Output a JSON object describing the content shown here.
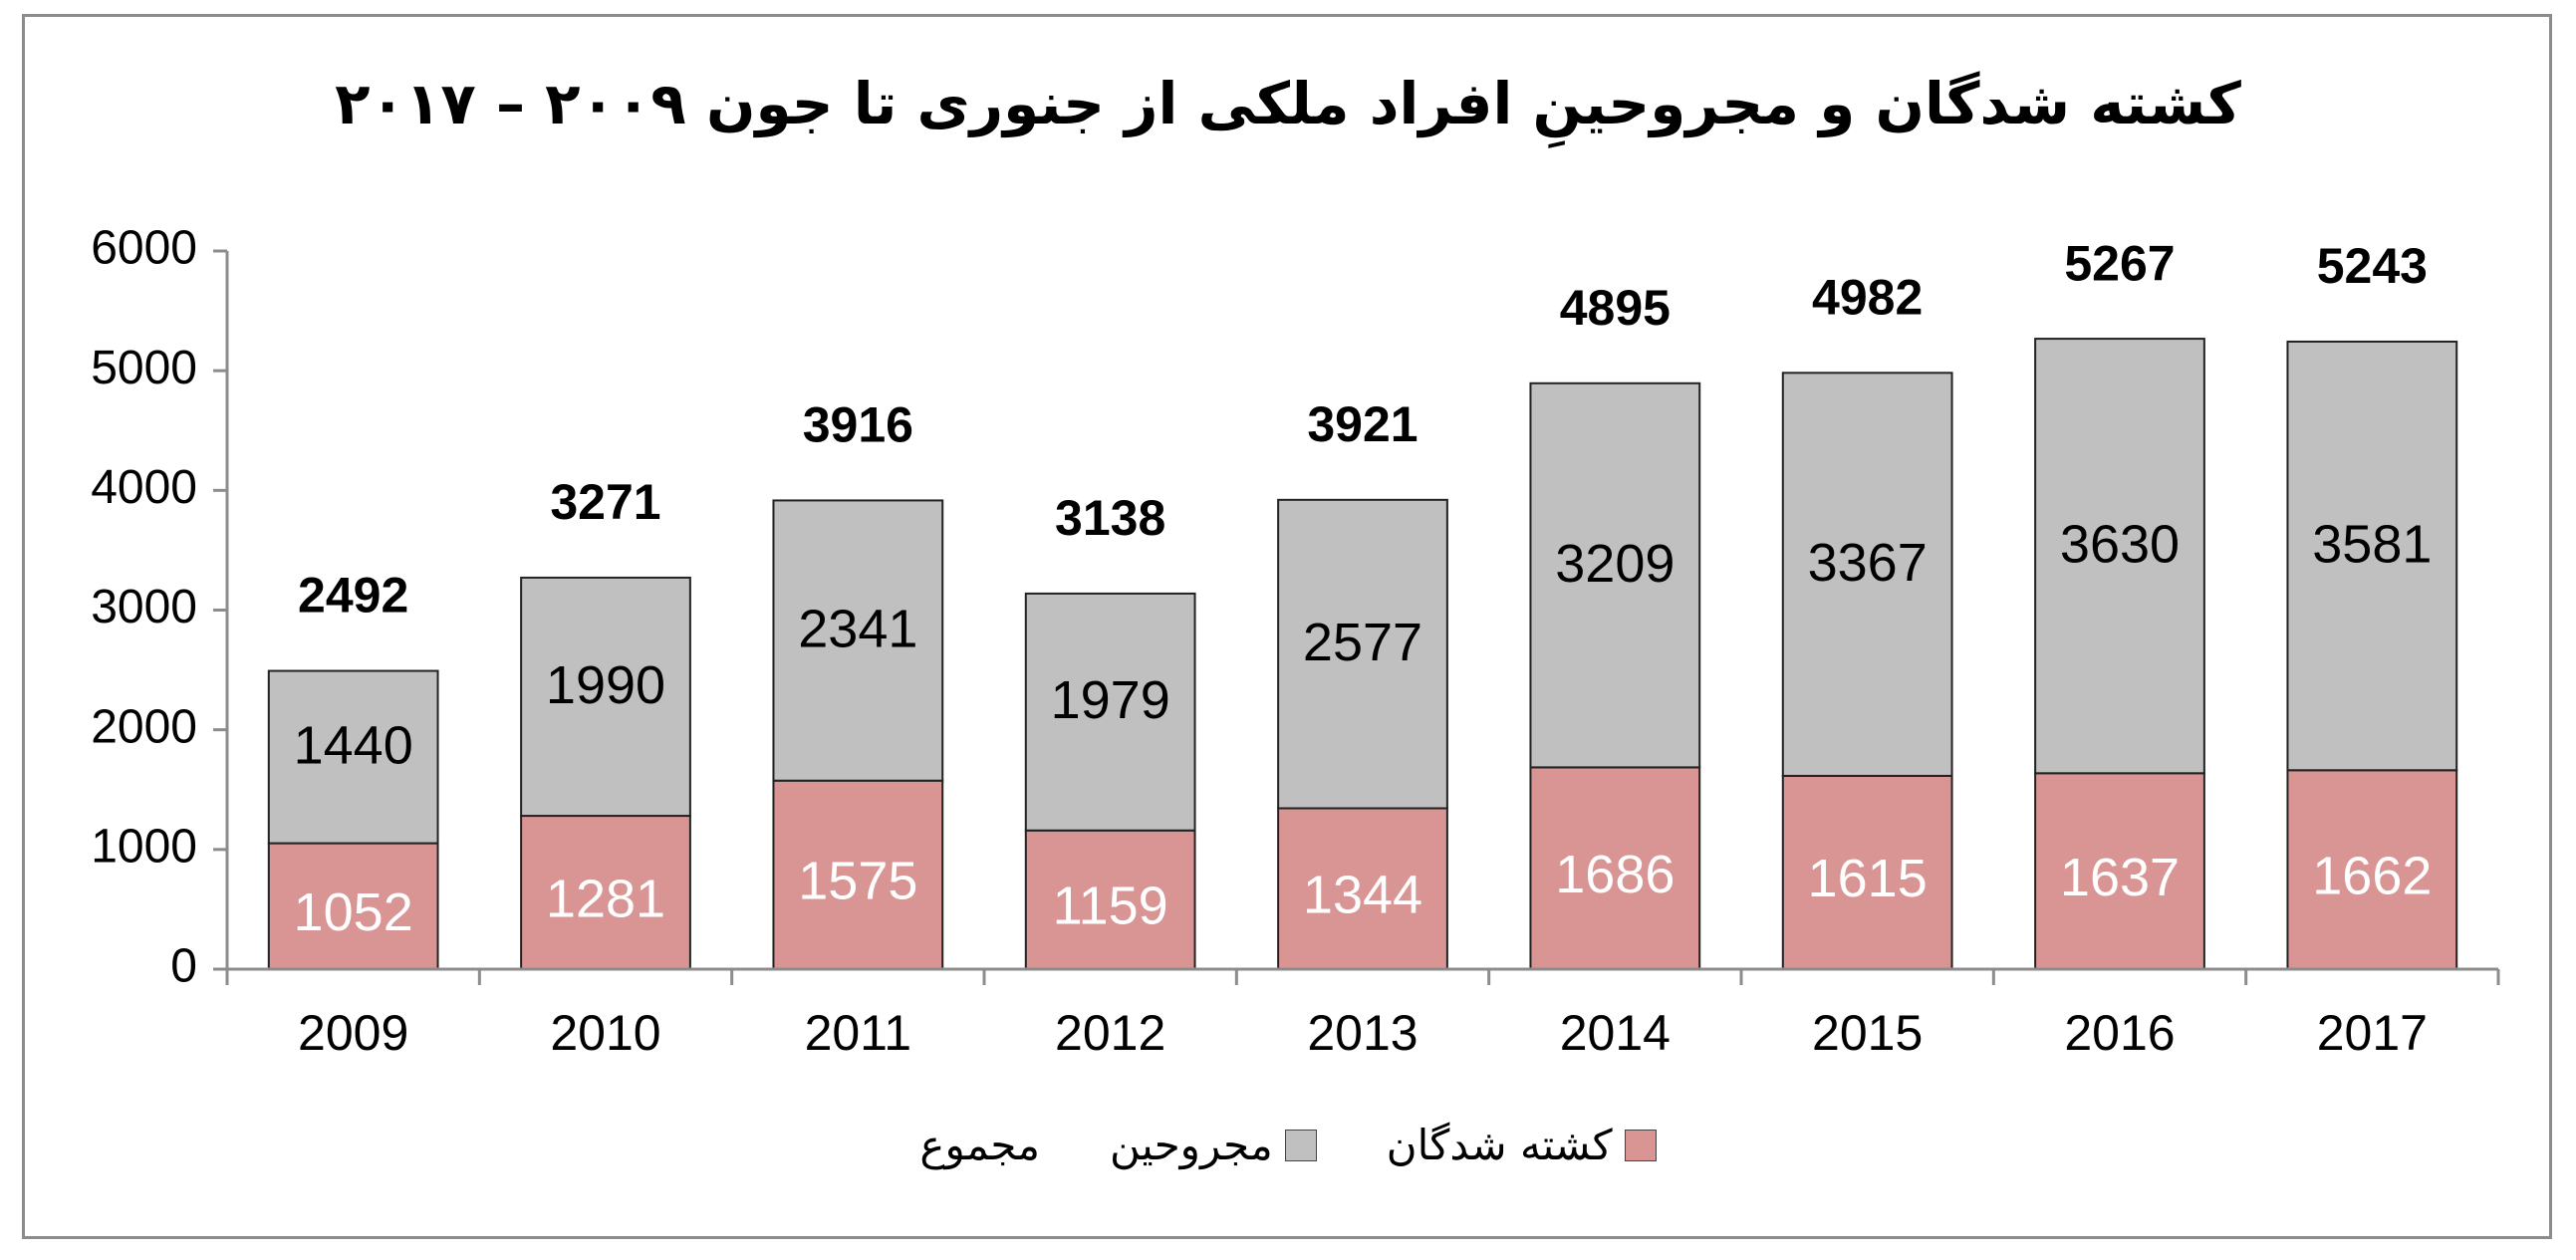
{
  "chart_data": {
    "type": "bar",
    "stacked": true,
    "title": "کشته شدگان و مجروحینِ افراد ملکی از جنوری تا جون ۲۰۰۹ – ۲۰۱۷",
    "categories": [
      "2009",
      "2010",
      "2011",
      "2012",
      "2013",
      "2014",
      "2015",
      "2016",
      "2017"
    ],
    "series": [
      {
        "name": "کشته شدگان",
        "color": "#d99594",
        "values": [
          1052,
          1281,
          1575,
          1159,
          1344,
          1686,
          1615,
          1637,
          1662
        ]
      },
      {
        "name": "مجروحین",
        "color": "#c0c0c0",
        "values": [
          1440,
          1990,
          2341,
          1979,
          2577,
          3209,
          3367,
          3630,
          3581
        ]
      }
    ],
    "totals_name": "مجموع",
    "totals": [
      2492,
      3271,
      3916,
      3138,
      3921,
      4895,
      4982,
      5267,
      5243
    ],
    "ylim": [
      0,
      6000
    ],
    "yticks": [
      0,
      1000,
      2000,
      3000,
      4000,
      5000,
      6000
    ],
    "grid": false,
    "legend_position": "bottom"
  }
}
